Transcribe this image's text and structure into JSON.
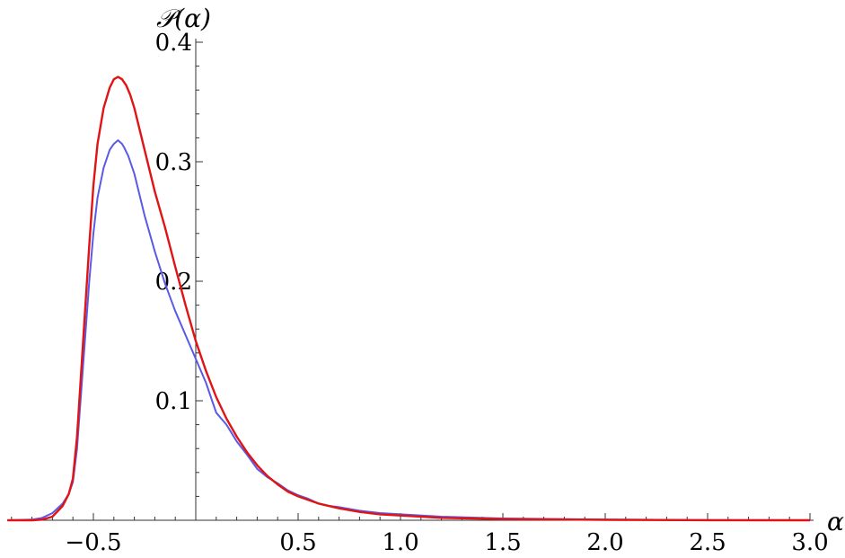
{
  "chart_data": {
    "type": "line",
    "title": "",
    "xlabel": "α",
    "ylabel": "𝒫(α)",
    "xlim": [
      -0.92,
      3.0
    ],
    "ylim": [
      0,
      0.4
    ],
    "x_ticks": [
      {
        "value": -0.5,
        "label": "−0.5"
      },
      {
        "value": 0.5,
        "label": "0.5"
      },
      {
        "value": 1.0,
        "label": "1.0"
      },
      {
        "value": 1.5,
        "label": "1.5"
      },
      {
        "value": 2.0,
        "label": "2.0"
      },
      {
        "value": 2.5,
        "label": "2.5"
      },
      {
        "value": 3.0,
        "label": "3.0"
      }
    ],
    "y_ticks": [
      {
        "value": 0.1,
        "label": "0.1"
      },
      {
        "value": 0.2,
        "label": "0.2"
      },
      {
        "value": 0.3,
        "label": "0.3"
      },
      {
        "value": 0.4,
        "label": "0.4"
      }
    ],
    "grid": false,
    "legend": "none",
    "series": [
      {
        "color": "#5a5ae6",
        "x": [
          -0.92,
          -0.8,
          -0.75,
          -0.7,
          -0.65,
          -0.62,
          -0.6,
          -0.58,
          -0.55,
          -0.52,
          -0.5,
          -0.48,
          -0.45,
          -0.42,
          -0.4,
          -0.38,
          -0.36,
          -0.35,
          -0.33,
          -0.3,
          -0.25,
          -0.2,
          -0.15,
          -0.1,
          -0.05,
          0.0,
          0.05,
          0.08,
          0.1,
          0.15,
          0.2,
          0.25,
          0.3,
          0.35,
          0.4,
          0.45,
          0.5,
          0.55,
          0.6,
          0.65,
          0.7,
          0.8,
          0.9,
          1.0,
          1.2,
          1.5,
          2.0,
          2.5,
          3.0
        ],
        "y": [
          0.0,
          0.0005,
          0.002,
          0.006,
          0.014,
          0.022,
          0.032,
          0.06,
          0.13,
          0.2,
          0.24,
          0.27,
          0.295,
          0.31,
          0.315,
          0.318,
          0.315,
          0.312,
          0.305,
          0.29,
          0.255,
          0.225,
          0.198,
          0.175,
          0.155,
          0.135,
          0.115,
          0.1,
          0.09,
          0.08,
          0.066,
          0.055,
          0.043,
          0.036,
          0.031,
          0.025,
          0.021,
          0.018,
          0.014,
          0.012,
          0.011,
          0.008,
          0.006,
          0.005,
          0.003,
          0.0015,
          0.0005,
          0.0002,
          0.0001
        ]
      },
      {
        "color": "#e01414",
        "x": [
          -0.92,
          -0.8,
          -0.75,
          -0.7,
          -0.65,
          -0.62,
          -0.6,
          -0.58,
          -0.55,
          -0.52,
          -0.5,
          -0.48,
          -0.45,
          -0.42,
          -0.4,
          -0.38,
          -0.36,
          -0.34,
          -0.32,
          -0.3,
          -0.25,
          -0.2,
          -0.15,
          -0.1,
          -0.05,
          0.0,
          0.05,
          0.1,
          0.15,
          0.2,
          0.25,
          0.3,
          0.35,
          0.4,
          0.45,
          0.5,
          0.55,
          0.6,
          0.7,
          0.8,
          0.9,
          1.0,
          1.2,
          1.5,
          2.0,
          2.5,
          3.0
        ],
        "y": [
          0.0,
          0.0,
          0.0005,
          0.003,
          0.012,
          0.022,
          0.035,
          0.07,
          0.15,
          0.23,
          0.28,
          0.315,
          0.345,
          0.362,
          0.369,
          0.371,
          0.369,
          0.364,
          0.356,
          0.345,
          0.31,
          0.275,
          0.245,
          0.212,
          0.18,
          0.15,
          0.125,
          0.103,
          0.085,
          0.07,
          0.057,
          0.046,
          0.037,
          0.03,
          0.024,
          0.02,
          0.017,
          0.014,
          0.01,
          0.007,
          0.005,
          0.004,
          0.002,
          0.001,
          0.0004,
          0.0001,
          0.0
        ]
      }
    ]
  }
}
